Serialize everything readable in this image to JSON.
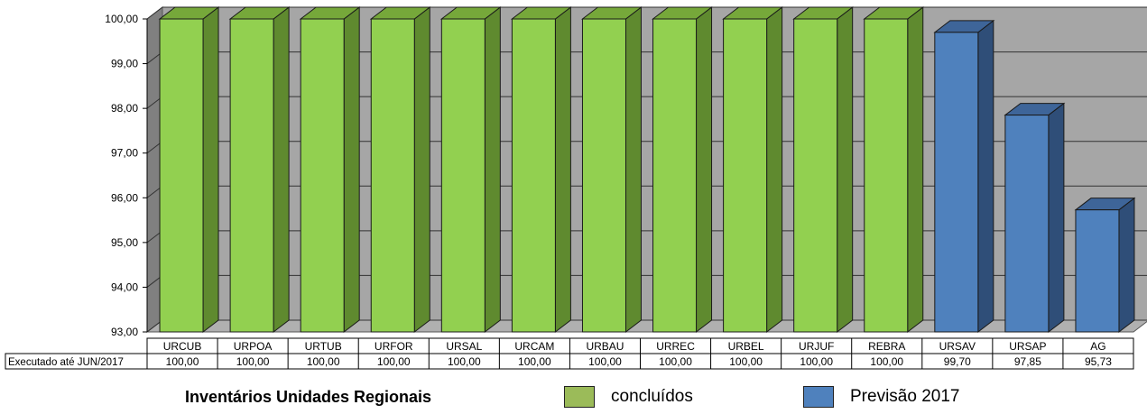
{
  "chart_data": {
    "type": "bar",
    "title": "",
    "ylim": [
      93,
      100
    ],
    "yticks": [
      "93,00",
      "94,00",
      "95,00",
      "96,00",
      "97,00",
      "98,00",
      "99,00",
      "100,00"
    ],
    "categories": [
      "URCUB",
      "URPOA",
      "URTUB",
      "URFOR",
      "URSAL",
      "URCAM",
      "URBAU",
      "URREC",
      "URBEL",
      "URJUF",
      "REBRA",
      "URSAV",
      "URSAP",
      "AG"
    ],
    "values": [
      100.0,
      100.0,
      100.0,
      100.0,
      100.0,
      100.0,
      100.0,
      100.0,
      100.0,
      100.0,
      100.0,
      99.7,
      97.85,
      95.73
    ],
    "value_labels": [
      "100,00",
      "100,00",
      "100,00",
      "100,00",
      "100,00",
      "100,00",
      "100,00",
      "100,00",
      "100,00",
      "100,00",
      "100,00",
      "99,70",
      "97,85",
      "95,73"
    ],
    "status": [
      "concluido",
      "concluido",
      "concluido",
      "concluido",
      "concluido",
      "concluido",
      "concluido",
      "concluido",
      "concluido",
      "concluido",
      "concluido",
      "previsao",
      "previsao",
      "previsao"
    ],
    "table_row_label": "Executado até JUN/2017",
    "grid": true,
    "three_d": true
  },
  "legend": {
    "title": "Inventários Unidades Regionais",
    "items": [
      {
        "label": "concluídos",
        "color": "#9bbb59"
      },
      {
        "label": "Previsão 2017",
        "color": "#4f81bd"
      }
    ]
  },
  "colors": {
    "concluido_front": "#92d050",
    "concluido_side": "#5f8a2f",
    "concluido_top": "#76a83a",
    "previsao_front": "#4f81bd",
    "previsao_side": "#2f4e78",
    "previsao_top": "#3e6599",
    "wall": "#a6a6a6",
    "wall_side": "#808080",
    "floor": "#b0b0b0"
  }
}
